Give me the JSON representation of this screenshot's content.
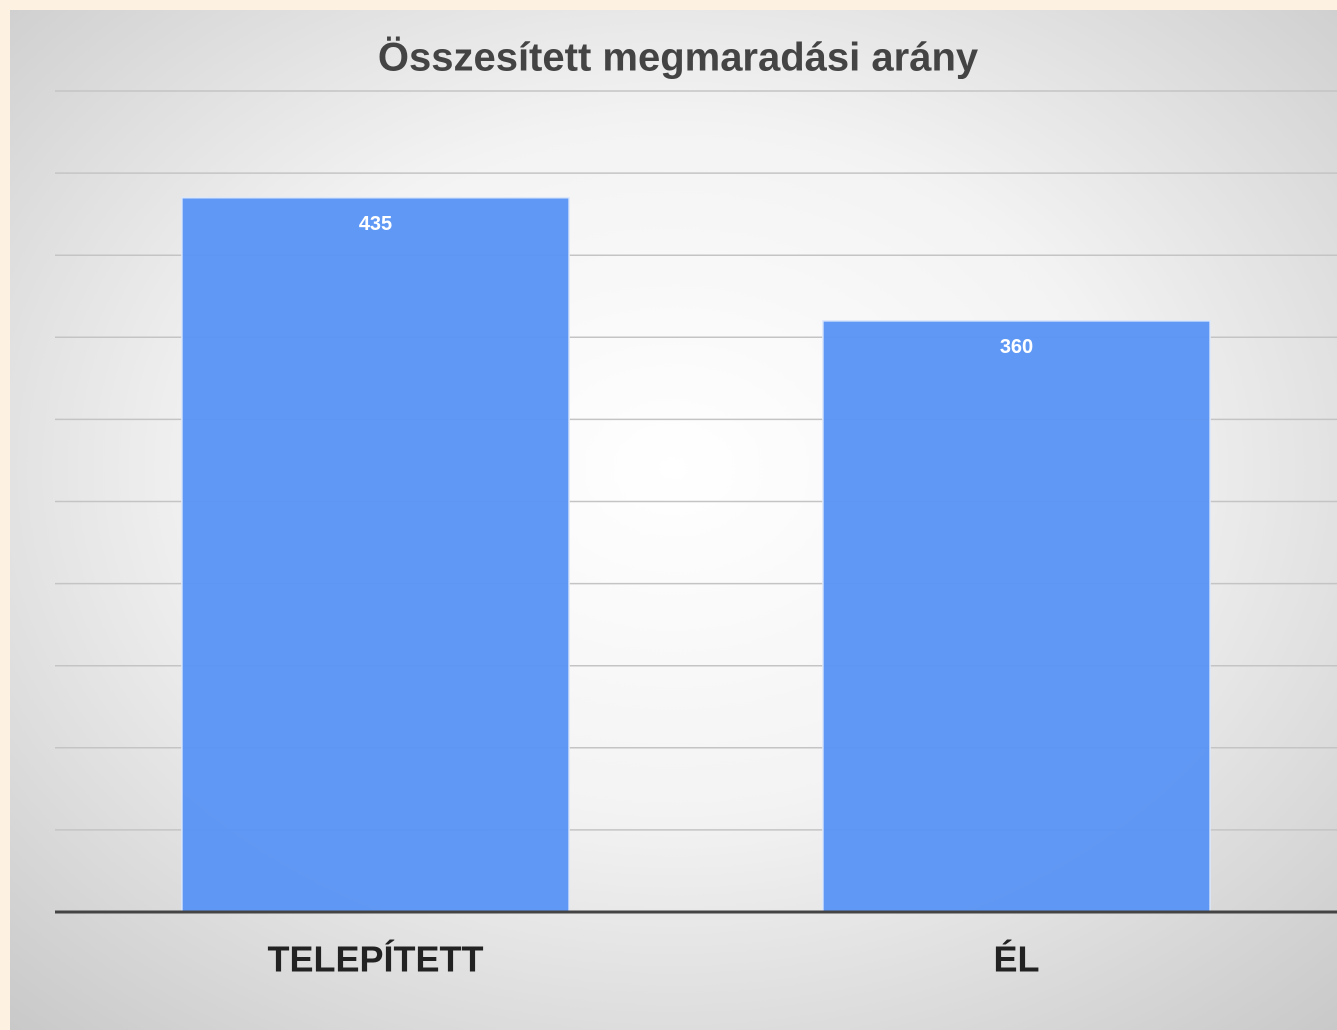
{
  "chart_data": {
    "type": "bar",
    "title": "Összesített megmaradási arány",
    "categories": [
      "TELEPÍTETT",
      "ÉL"
    ],
    "values": [
      435,
      360
    ],
    "color": "#5b95f5",
    "ylim": [
      0,
      500
    ],
    "yticks": [
      0,
      50,
      100,
      150,
      200,
      250,
      300,
      350,
      400,
      450,
      500
    ],
    "grid": true
  }
}
